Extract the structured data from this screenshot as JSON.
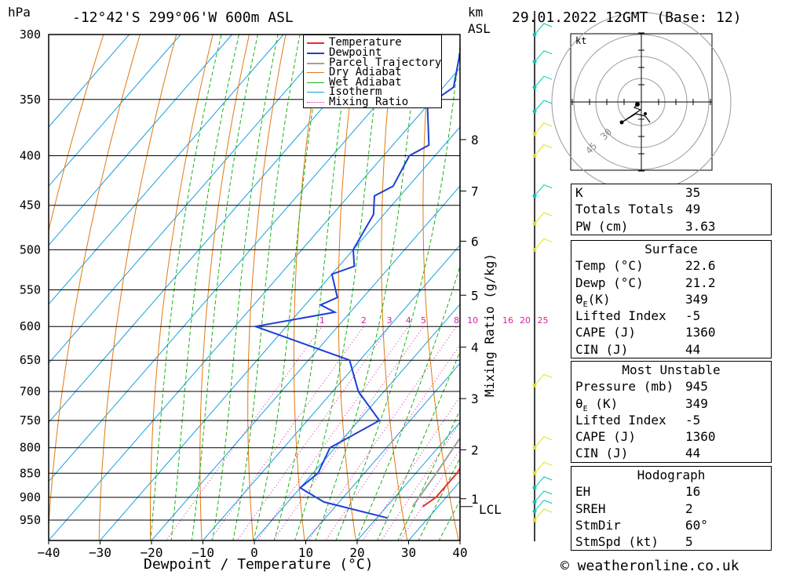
{
  "header": {
    "unit_left": "hPa",
    "location": "-12°42'S 299°06'W 600m ASL",
    "unit_km": "km",
    "unit_asl": "ASL",
    "datetime": "29.01.2022 12GMT (Base: 12)"
  },
  "footer": {
    "credit": "© weatheronline.co.uk"
  },
  "colors": {
    "temperature": "#e8302a",
    "dewpoint": "#1c3fd6",
    "parcel": "#a0a0a0",
    "dry_adiabat": "#e07a10",
    "wet_adiabat": "#18b418",
    "isotherm": "#18a0e0",
    "mixing_ratio": "#d81fa0",
    "wind_cyan": "#00c8b4",
    "wind_yellow": "#e0e020"
  },
  "chart_data": {
    "type": "line",
    "xlabel": "Dewpoint / Temperature (°C)",
    "ylabel": "hPa",
    "y2label": "Mixing Ratio (g/kg)",
    "xlim": [
      -40,
      40
    ],
    "ylim": [
      980,
      300
    ],
    "x_ticks": [
      "-40",
      "-30",
      "-20",
      "-10",
      "0",
      "10",
      "20",
      "30",
      "40"
    ],
    "pressure_ticks": [
      "300",
      "350",
      "400",
      "450",
      "500",
      "550",
      "600",
      "650",
      "700",
      "750",
      "800",
      "850",
      "900",
      "950"
    ],
    "km_ticks": [
      {
        "label": "8",
        "p": 385
      },
      {
        "label": "7",
        "p": 435
      },
      {
        "label": "6",
        "p": 490
      },
      {
        "label": "5",
        "p": 557
      },
      {
        "label": "4",
        "p": 630
      },
      {
        "label": "3",
        "p": 712
      },
      {
        "label": "2",
        "p": 804
      },
      {
        "label": "1",
        "p": 903
      }
    ],
    "lcl": {
      "label": "LCL",
      "p": 920
    },
    "mixing_ratio_labels": [
      "1",
      "2",
      "3",
      "4",
      "5",
      "8",
      "10",
      "16",
      "20",
      "25"
    ],
    "legend": [
      "Temperature",
      "Dewpoint",
      "Parcel Trajectory",
      "Dry Adiabat",
      "Wet Adiabat",
      "Isotherm",
      "Mixing Ratio"
    ],
    "series": [
      {
        "name": "Temperature",
        "points": [
          [
            300,
            -22
          ],
          [
            350,
            -12
          ],
          [
            400,
            -5
          ],
          [
            430,
            -4
          ],
          [
            450,
            -1
          ],
          [
            500,
            4
          ],
          [
            550,
            10
          ],
          [
            570,
            13
          ],
          [
            600,
            15
          ],
          [
            650,
            19
          ],
          [
            700,
            22
          ],
          [
            750,
            24
          ],
          [
            800,
            27
          ],
          [
            850,
            28
          ],
          [
            900,
            28
          ],
          [
            920,
            27
          ]
        ]
      },
      {
        "name": "Dewpoint",
        "points": [
          [
            300,
            -45
          ],
          [
            340,
            -38
          ],
          [
            355,
            -40
          ],
          [
            390,
            -33
          ],
          [
            400,
            -35
          ],
          [
            430,
            -33
          ],
          [
            440,
            -35
          ],
          [
            460,
            -32
          ],
          [
            500,
            -30
          ],
          [
            520,
            -27
          ],
          [
            530,
            -30
          ],
          [
            560,
            -25
          ],
          [
            570,
            -27
          ],
          [
            580,
            -23
          ],
          [
            600,
            -36
          ],
          [
            650,
            -12
          ],
          [
            700,
            -5
          ],
          [
            750,
            4
          ],
          [
            800,
            -1
          ],
          [
            850,
            1
          ],
          [
            880,
            0
          ],
          [
            910,
            7
          ],
          [
            945,
            22
          ]
        ]
      },
      {
        "name": "Parcel Trajectory",
        "points": [
          [
            370,
            -5
          ],
          [
            450,
            3
          ],
          [
            550,
            12
          ],
          [
            650,
            19
          ],
          [
            750,
            22
          ],
          [
            850,
            24
          ],
          [
            920,
            25
          ]
        ]
      }
    ],
    "indices": {
      "K": "35",
      "Totals Totals": "49",
      "PW (cm)": "3.63"
    },
    "surface": {
      "title": "Surface",
      "Temp (°C)": "22.6",
      "Dewp (°C)": "21.2",
      "θE(K)": "349",
      "Lifted Index": "-5",
      "CAPE (J)": "1360",
      "CIN (J)": "44"
    },
    "most_unstable": {
      "title": "Most Unstable",
      "Pressure (mb)": "945",
      "θE (K)": "349",
      "Lifted Index": "-5",
      "CAPE (J)": "1360",
      "CIN (J)": "44"
    },
    "hodograph": {
      "title": "Hodograph",
      "unit": "kt",
      "ring_labels": [
        "30",
        "45"
      ],
      "EH": "16",
      "SREH": "2",
      "StmDir": "60°",
      "StmSpd (kt)": "5"
    }
  }
}
